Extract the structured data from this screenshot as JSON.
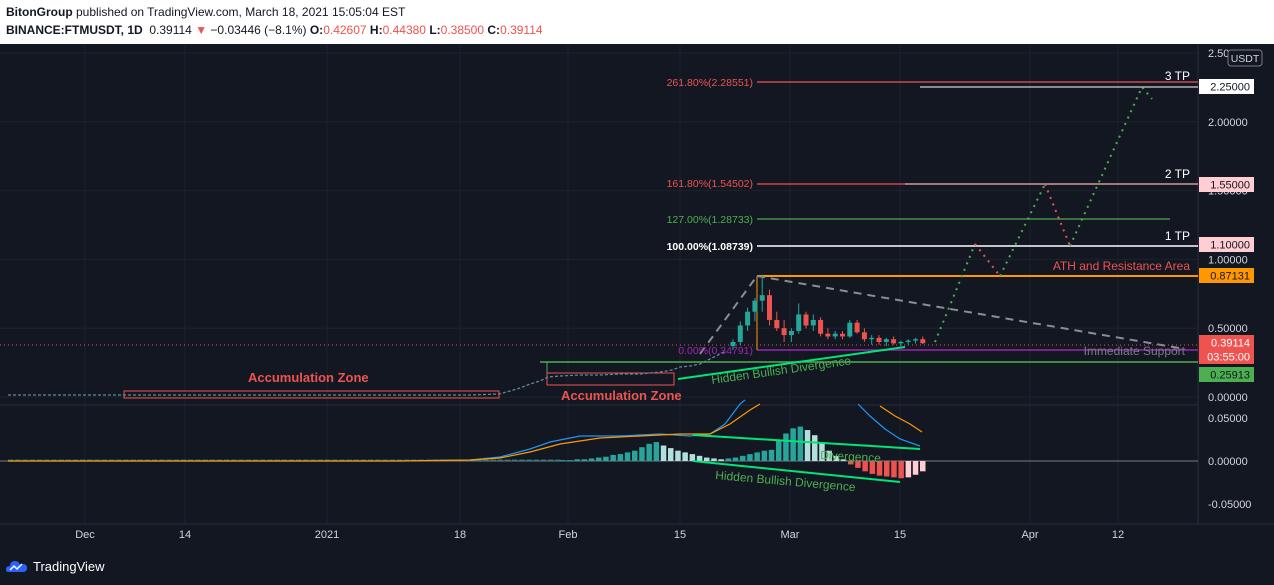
{
  "header": {
    "publisher": "BitonGroup",
    "published_text": "published on TradingView.com, March 18, 2021 15:05:04 EST",
    "symbol": "BINANCE:FTMUSDT, 1D",
    "last": "0.39114",
    "change": "−0.03446 (−8.1%)",
    "open_label": "O:",
    "open": "0.42607",
    "high_label": "H:",
    "high": "0.44380",
    "low_label": "L:",
    "low": "0.38500",
    "close_label": "C:",
    "close": "0.39114"
  },
  "footer": {
    "brand": "TradingView"
  },
  "colors": {
    "background": "#131722",
    "up_candle": "#26a69a",
    "down_candle": "#ef5350",
    "fib_red": "#ef5350",
    "fib_green": "#4caf50",
    "orange": "#ff9800",
    "purple": "#9c27b0",
    "green_line": "#00e676"
  },
  "chart_data": {
    "type": "candlestick",
    "symbol": "FTMUSDT",
    "interval": "1D",
    "currency": "USDT",
    "price_axis": [
      "2.50000",
      "2.00000",
      "1.50000",
      "1.00000",
      "0.50000",
      "0.00000"
    ],
    "price_range": [
      0,
      2.5
    ],
    "indicator_axis": [
      "0.05000",
      "0.00000",
      "-0.05000"
    ],
    "time_axis": [
      "Dec",
      "14",
      "2021",
      "18",
      "Feb",
      "15",
      "Mar",
      "15",
      "Apr",
      "12"
    ],
    "price_labels": [
      {
        "text": "2.25000",
        "value": 2.25,
        "style": "white"
      },
      {
        "text": "1.55000",
        "value": 1.55,
        "style": "pink"
      },
      {
        "text": "1.10000",
        "value": 1.1,
        "style": "pink"
      },
      {
        "text": "0.87131",
        "value": 0.87131,
        "style": "orange"
      },
      {
        "text": "0.39114",
        "value": 0.39114,
        "style": "red"
      },
      {
        "text": "03:55:00",
        "value": 0.33,
        "style": "red"
      },
      {
        "text": "0.25913",
        "value": 0.25913,
        "style": "green"
      }
    ],
    "fib_levels": [
      {
        "label": "261.80%(2.28551)",
        "value": 2.28551,
        "color": "#ef5350"
      },
      {
        "label": "161.80%(1.54502)",
        "value": 1.54502,
        "color": "#ef5350"
      },
      {
        "label": "127.00%(1.28733)",
        "value": 1.28733,
        "color": "#4caf50"
      },
      {
        "label": "100.00%(1.08739)",
        "value": 1.08739,
        "color": "#ffffff"
      },
      {
        "label": "0.00%(0.34791)",
        "value": 0.34791,
        "color": "#9c27b0"
      }
    ],
    "annotations": [
      {
        "text": "3 TP"
      },
      {
        "text": "2 TP"
      },
      {
        "text": "1 TP"
      },
      {
        "text": "ATH and Resistance Area"
      },
      {
        "text": "Immediate Support"
      },
      {
        "text": "Hidden Bullish Divergence"
      },
      {
        "text": "Accumulation Zone"
      },
      {
        "text": "Accumulation Zone"
      },
      {
        "text": "Hidden Bullish Divergence"
      },
      {
        "text": "Divergence"
      }
    ],
    "candles": [
      {
        "o": 0.37,
        "h": 0.42,
        "l": 0.34,
        "c": 0.4
      },
      {
        "o": 0.4,
        "h": 0.55,
        "l": 0.38,
        "c": 0.52
      },
      {
        "o": 0.52,
        "h": 0.65,
        "l": 0.48,
        "c": 0.62
      },
      {
        "o": 0.62,
        "h": 0.72,
        "l": 0.55,
        "c": 0.7
      },
      {
        "o": 0.7,
        "h": 0.88,
        "l": 0.62,
        "c": 0.74
      },
      {
        "o": 0.74,
        "h": 0.78,
        "l": 0.52,
        "c": 0.56
      },
      {
        "o": 0.56,
        "h": 0.62,
        "l": 0.48,
        "c": 0.5
      },
      {
        "o": 0.5,
        "h": 0.56,
        "l": 0.4,
        "c": 0.45
      },
      {
        "o": 0.45,
        "h": 0.5,
        "l": 0.4,
        "c": 0.48
      },
      {
        "o": 0.48,
        "h": 0.68,
        "l": 0.46,
        "c": 0.6
      },
      {
        "o": 0.6,
        "h": 0.62,
        "l": 0.5,
        "c": 0.52
      },
      {
        "o": 0.52,
        "h": 0.6,
        "l": 0.48,
        "c": 0.56
      },
      {
        "o": 0.56,
        "h": 0.58,
        "l": 0.44,
        "c": 0.46
      },
      {
        "o": 0.46,
        "h": 0.5,
        "l": 0.42,
        "c": 0.44
      },
      {
        "o": 0.44,
        "h": 0.48,
        "l": 0.42,
        "c": 0.46
      },
      {
        "o": 0.46,
        "h": 0.48,
        "l": 0.42,
        "c": 0.44
      },
      {
        "o": 0.44,
        "h": 0.56,
        "l": 0.43,
        "c": 0.54
      },
      {
        "o": 0.54,
        "h": 0.56,
        "l": 0.46,
        "c": 0.47
      },
      {
        "o": 0.47,
        "h": 0.5,
        "l": 0.4,
        "c": 0.42
      },
      {
        "o": 0.42,
        "h": 0.45,
        "l": 0.38,
        "c": 0.43
      },
      {
        "o": 0.43,
        "h": 0.45,
        "l": 0.38,
        "c": 0.4
      },
      {
        "o": 0.4,
        "h": 0.43,
        "l": 0.37,
        "c": 0.42
      },
      {
        "o": 0.42,
        "h": 0.44,
        "l": 0.38,
        "c": 0.39
      },
      {
        "o": 0.39,
        "h": 0.41,
        "l": 0.37,
        "c": 0.4
      },
      {
        "o": 0.4,
        "h": 0.42,
        "l": 0.38,
        "c": 0.41
      },
      {
        "o": 0.41,
        "h": 0.43,
        "l": 0.39,
        "c": 0.42
      },
      {
        "o": 0.42,
        "h": 0.44,
        "l": 0.385,
        "c": 0.391
      }
    ],
    "histogram": [
      0.001,
      0.001,
      0.002,
      0.002,
      0.003,
      0.004,
      0.005,
      0.007,
      0.008,
      0.01,
      0.012,
      0.016,
      0.02,
      0.022,
      0.018,
      0.015,
      0.012,
      0.01,
      0.008,
      0.006,
      0.004,
      0.003,
      0.002,
      0.003,
      0.004,
      0.006,
      0.008,
      0.01,
      0.012,
      0.013,
      0.025,
      0.032,
      0.038,
      0.04,
      0.036,
      0.03,
      0.022,
      0.012,
      0.006,
      0.002,
      -0.004,
      -0.008,
      -0.012,
      -0.015,
      -0.017,
      -0.018,
      -0.019,
      -0.02,
      -0.019,
      -0.016,
      -0.012
    ]
  }
}
